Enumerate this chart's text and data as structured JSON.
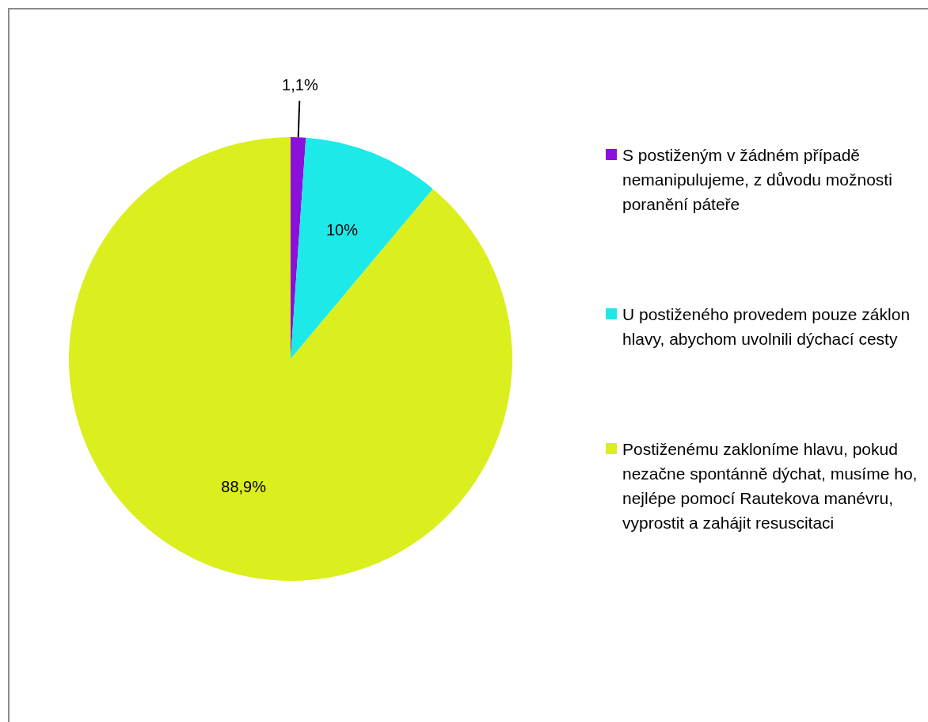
{
  "chart_data": {
    "type": "pie",
    "categories": [
      "S postiženým v žádném případě nemanipulujeme, z důvodu možnosti poranění páteře",
      "U postiženého provedem pouze záklon hlavy, abychom uvolnili dýchací cesty",
      "Postiženému zakloníme hlavu, pokud nezačne spontánně dýchat, musíme ho, nejlépe pomocí Rautekova manévru, vyprostit a zahájit resuscitaci"
    ],
    "values": [
      1.1,
      10,
      88.9
    ],
    "colors": [
      "#8b10dc",
      "#1de9e9",
      "#dbee1e"
    ],
    "value_labels": [
      "1,1%",
      "10%",
      "88,9%"
    ],
    "legend": "right"
  }
}
